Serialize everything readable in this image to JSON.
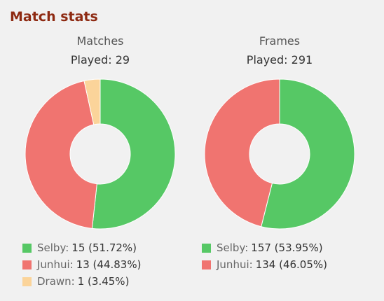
{
  "title": "Match stats",
  "chart_data": [
    {
      "type": "pie",
      "title": "Matches",
      "subtitle_label": "Played:",
      "total": 29,
      "slices": [
        {
          "name": "Selby",
          "value": 15,
          "pct": "51.72%",
          "color": "#56c865"
        },
        {
          "name": "Junhui",
          "value": 13,
          "pct": "44.83%",
          "color": "#f07470"
        },
        {
          "name": "Drawn",
          "value": 1,
          "pct": "3.45%",
          "color": "#fbd49a"
        }
      ]
    },
    {
      "type": "pie",
      "title": "Frames",
      "subtitle_label": "Played:",
      "total": 291,
      "slices": [
        {
          "name": "Selby",
          "value": 157,
          "pct": "53.95%",
          "color": "#56c865"
        },
        {
          "name": "Junhui",
          "value": 134,
          "pct": "46.05%",
          "color": "#f07470"
        }
      ]
    }
  ]
}
